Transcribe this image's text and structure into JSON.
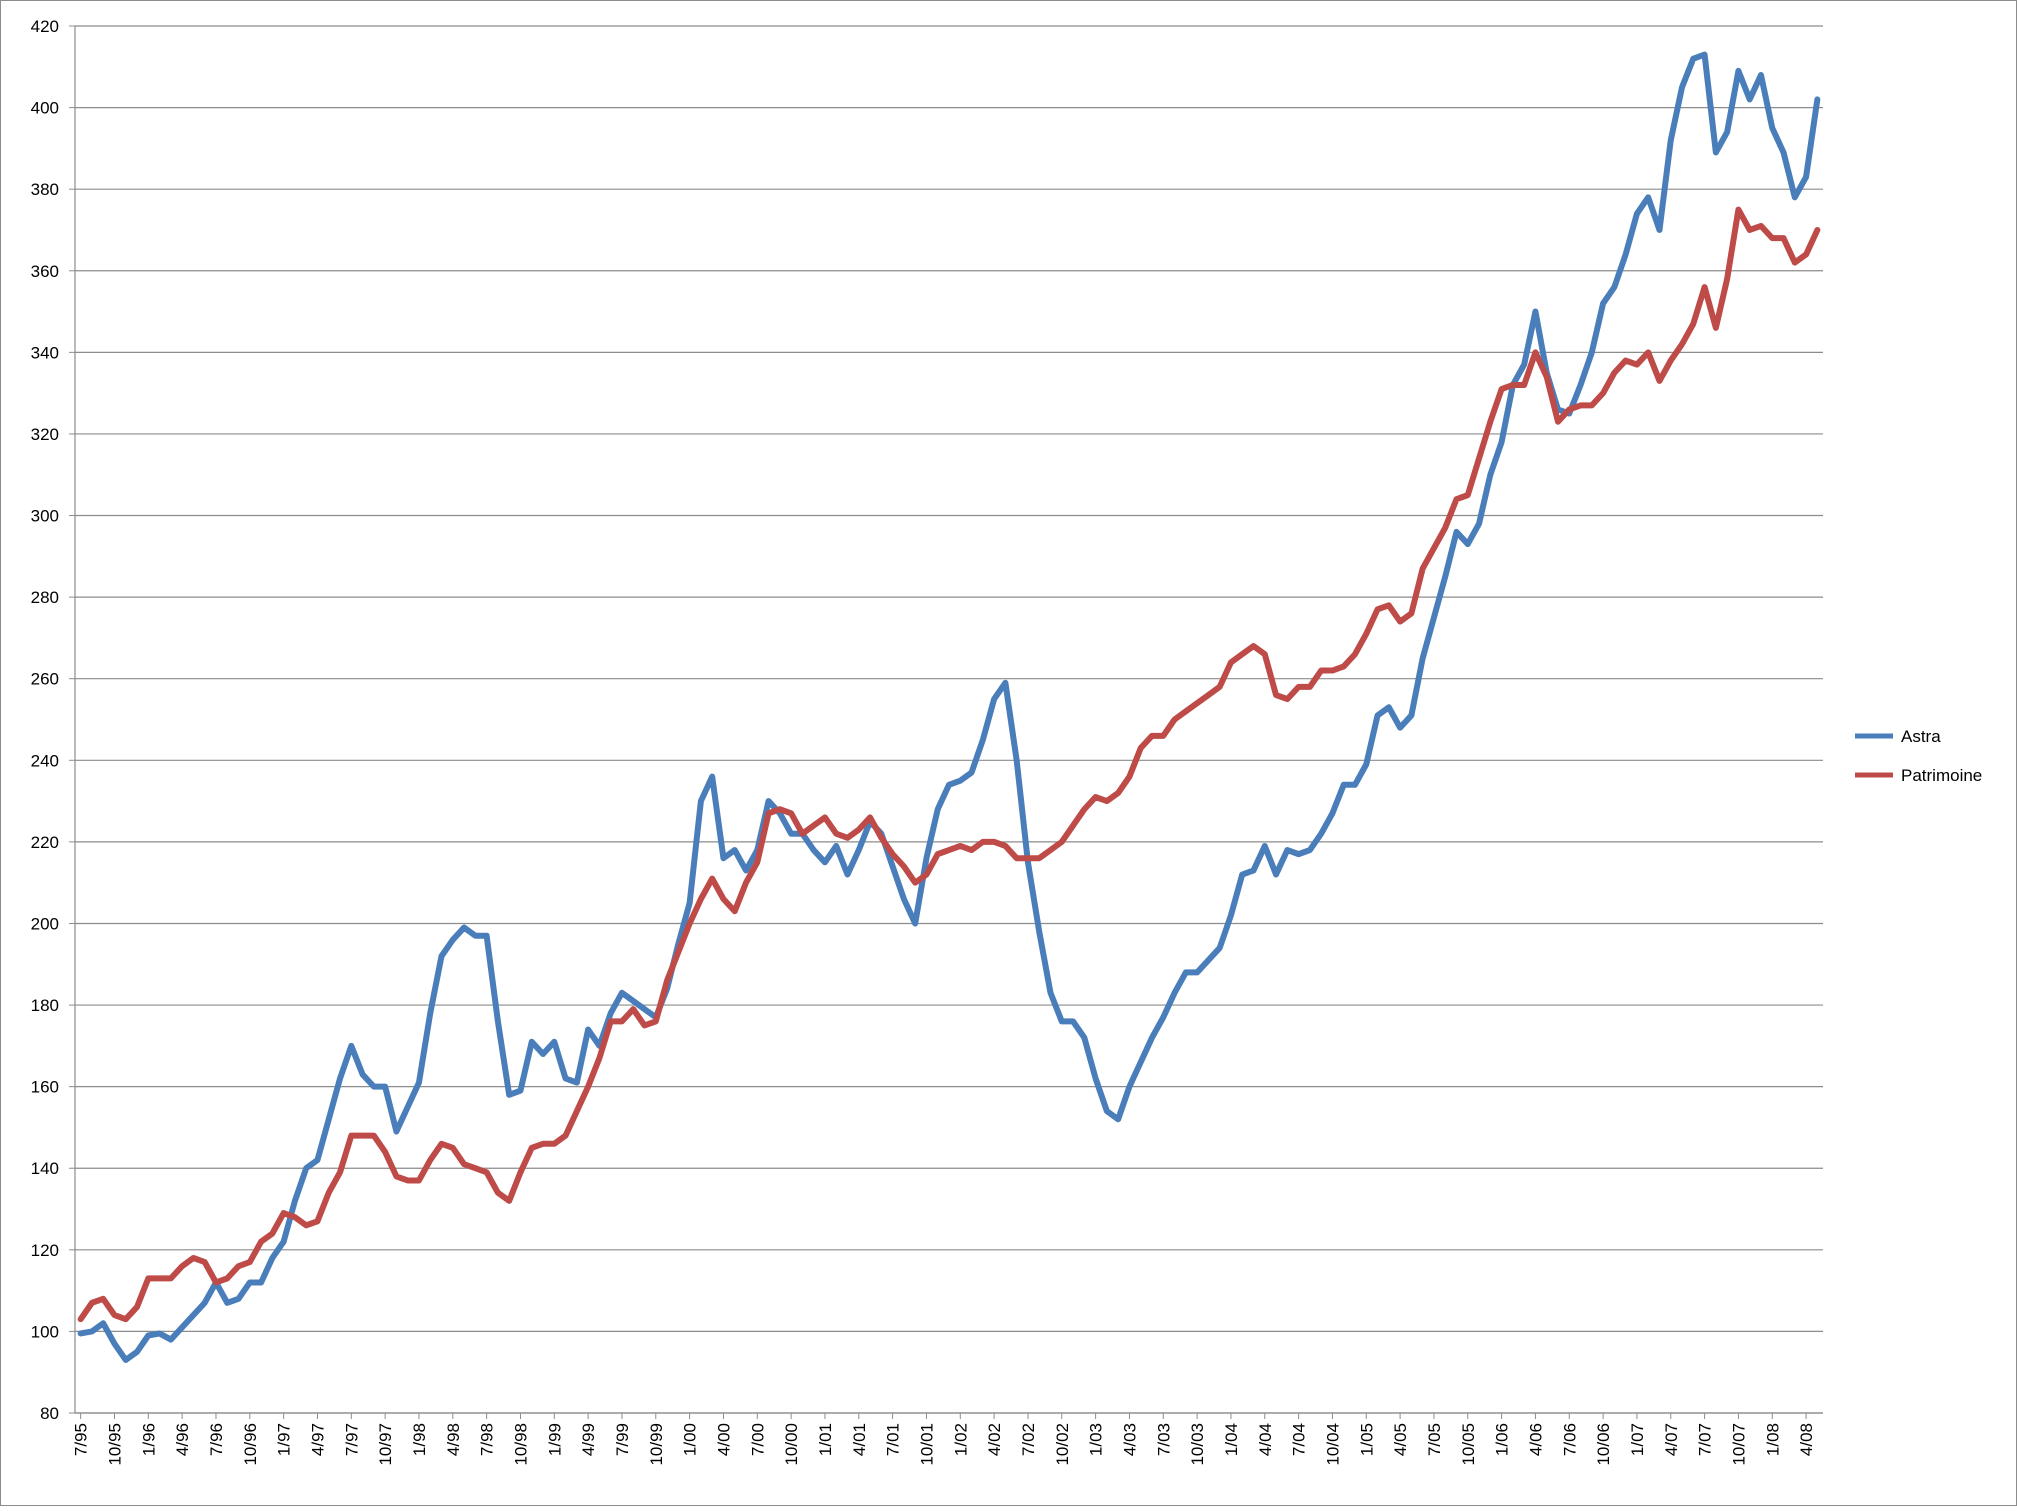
{
  "chart_data": {
    "type": "line",
    "categories": [
      "7/95",
      null,
      null,
      "10/95",
      null,
      null,
      "1/96",
      null,
      null,
      "4/96",
      null,
      null,
      "7/96",
      null,
      null,
      "10/96",
      null,
      null,
      "1/97",
      null,
      null,
      "4/97",
      null,
      null,
      "7/97",
      null,
      null,
      "10/97",
      null,
      null,
      "1/98",
      null,
      null,
      "4/98",
      null,
      null,
      "7/98",
      null,
      null,
      "10/98",
      null,
      null,
      "1/99",
      null,
      null,
      "4/99",
      null,
      null,
      "7/99",
      null,
      null,
      "10/99",
      null,
      null,
      "1/00",
      null,
      null,
      "4/00",
      null,
      null,
      "7/00",
      null,
      null,
      "10/00",
      null,
      null,
      "1/01",
      null,
      null,
      "4/01",
      null,
      null,
      "7/01",
      null,
      null,
      "10/01",
      null,
      null,
      "1/02",
      null,
      null,
      "4/02",
      null,
      null,
      "7/02",
      null,
      null,
      "10/02",
      null,
      null,
      "1/03",
      null,
      null,
      "4/03",
      null,
      null,
      "7/03",
      null,
      null,
      "10/03",
      null,
      null,
      "1/04",
      null,
      null,
      "4/04",
      null,
      null,
      "7/04",
      null,
      null,
      "10/04",
      null,
      null,
      "1/05",
      null,
      null,
      "4/05",
      null,
      null,
      "7/05",
      null,
      null,
      "10/05",
      null,
      null,
      "1/06",
      null,
      null,
      "4/06",
      null,
      null,
      "7/06",
      null,
      null,
      "10/06",
      null,
      null,
      "1/07",
      null,
      null,
      "4/07",
      null,
      null,
      "7/07",
      null,
      null,
      "10/07",
      null,
      null,
      "1/08",
      null,
      null,
      "4/08",
      null
    ],
    "series": [
      {
        "name": "Astra",
        "color": "#4a7ebb",
        "values": [
          99.5,
          100,
          102,
          97,
          93,
          95,
          99,
          99.5,
          98,
          101,
          104,
          107,
          112,
          107,
          108,
          112,
          112,
          118,
          122,
          132,
          140,
          142,
          152,
          162,
          170,
          163,
          160,
          160,
          149,
          155,
          161,
          178,
          192,
          196,
          199,
          197,
          197,
          176,
          158,
          159,
          171,
          168,
          171,
          162,
          161,
          174,
          170,
          178,
          183,
          181,
          179,
          177,
          184,
          195,
          205,
          230,
          236,
          216,
          218,
          213,
          218,
          230,
          227,
          222,
          222,
          218,
          215,
          219,
          212,
          218,
          225,
          222,
          214,
          206,
          200,
          216,
          228,
          234,
          235,
          237,
          245,
          255,
          259,
          240,
          215,
          198,
          183,
          176,
          176,
          172,
          162,
          154,
          152,
          160,
          166,
          172,
          177,
          183,
          188,
          188,
          191,
          194,
          202,
          212,
          213,
          219,
          212,
          218,
          217,
          218,
          222,
          227,
          234,
          234,
          239,
          251,
          253,
          248,
          251,
          265,
          275,
          285,
          296,
          293,
          298,
          310,
          318,
          332,
          337,
          350,
          335,
          326,
          325,
          332,
          340,
          352,
          356,
          364,
          374,
          378,
          370,
          392,
          405,
          412,
          413,
          389,
          394,
          409,
          402,
          408,
          395,
          389,
          378,
          383,
          402
        ]
      },
      {
        "name": "Patrimoine",
        "color": "#be4b48",
        "values": [
          103,
          107,
          108,
          104,
          103,
          106,
          113,
          113,
          113,
          116,
          118,
          117,
          112,
          113,
          116,
          117,
          122,
          124,
          129,
          128,
          126,
          127,
          134,
          139,
          148,
          148,
          148,
          144,
          138,
          137,
          137,
          142,
          146,
          145,
          141,
          140,
          139,
          134,
          132,
          139,
          145,
          146,
          146,
          148,
          154,
          160,
          167,
          176,
          176,
          179,
          175,
          176,
          186,
          193,
          200,
          206,
          211,
          206,
          203,
          210,
          215,
          227,
          228,
          227,
          222,
          224,
          226,
          222,
          221,
          223,
          226,
          221,
          217,
          214,
          210,
          212,
          217,
          218,
          219,
          218,
          220,
          220,
          219,
          216,
          216,
          216,
          218,
          220,
          224,
          228,
          231,
          230,
          232,
          236,
          243,
          246,
          246,
          250,
          252,
          254,
          256,
          258,
          264,
          266,
          268,
          266,
          256,
          255,
          258,
          258,
          262,
          262,
          263,
          266,
          271,
          277,
          278,
          274,
          276,
          287,
          292,
          297,
          304,
          305,
          314,
          323,
          331,
          332,
          332,
          340,
          334,
          323,
          326,
          327,
          327,
          330,
          335,
          338,
          337,
          340,
          333,
          338,
          342,
          347,
          356,
          346,
          358,
          375,
          370,
          371,
          368,
          368,
          362,
          364,
          370
        ]
      }
    ],
    "ylim": [
      80,
      420
    ],
    "yticks": [
      80,
      100,
      120,
      140,
      160,
      180,
      200,
      220,
      240,
      260,
      280,
      300,
      320,
      340,
      360,
      380,
      400,
      420
    ],
    "grid": true,
    "legend": "right"
  }
}
